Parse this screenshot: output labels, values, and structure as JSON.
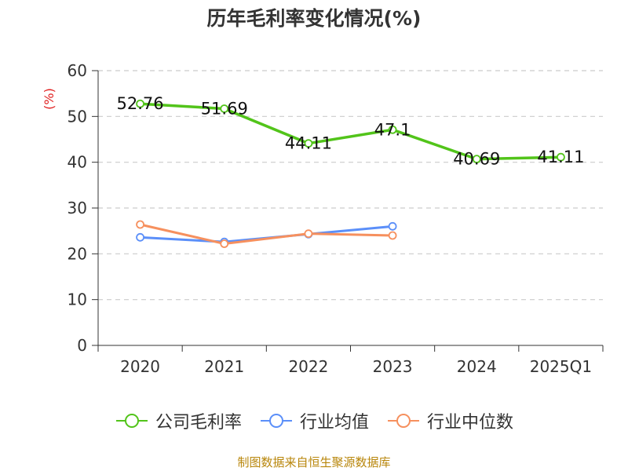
{
  "chart_data": {
    "type": "line",
    "title": "历年毛利率变化情况(%)",
    "ylabel": "(%)",
    "xlabel": "",
    "categories": [
      "2020",
      "2021",
      "2022",
      "2023",
      "2024",
      "2025Q1"
    ],
    "ylim": [
      0,
      60
    ],
    "yticks": [
      0,
      10,
      20,
      30,
      40,
      50,
      60
    ],
    "grid": "horizontal dashed",
    "legend_position": "bottom",
    "series": [
      {
        "name": "公司毛利率",
        "color": "#52c41a",
        "values": [
          52.76,
          51.69,
          44.11,
          47.1,
          40.69,
          41.11
        ],
        "labels": [
          "52.76",
          "51.69",
          "44.11",
          "47.1",
          "40.69",
          "41.11"
        ]
      },
      {
        "name": "行业均值",
        "color": "#5b8ff9",
        "values": [
          23.6,
          22.6,
          24.3,
          26.0,
          null,
          null
        ]
      },
      {
        "name": "行业中位数",
        "color": "#f6905e",
        "values": [
          26.4,
          22.2,
          24.4,
          24.0,
          null,
          null
        ]
      }
    ],
    "source": "制图数据来自恒生聚源数据库"
  }
}
